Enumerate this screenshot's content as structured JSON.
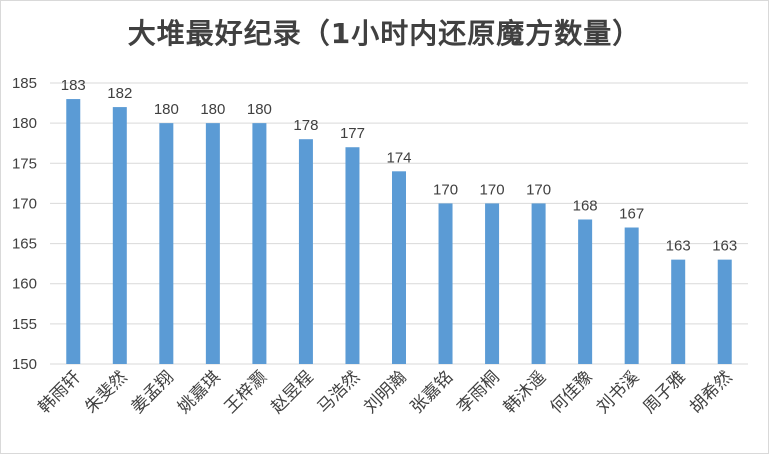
{
  "chart_data": {
    "type": "bar",
    "title": "大堆最好纪录（1小时内还原魔方数量）",
    "xlabel": "",
    "ylabel": "",
    "ylim": [
      150,
      185
    ],
    "yticks": [
      150,
      155,
      160,
      165,
      170,
      175,
      180,
      185
    ],
    "grid": true,
    "legend": "none",
    "bar_color": "#5b9bd5",
    "categories": [
      "韩雨轩",
      "朱斐然",
      "姜孟翔",
      "姚嘉琪",
      "王梓灏",
      "赵昱程",
      "马浩然",
      "刘明瀚",
      "张嘉铭",
      "李雨桐",
      "韩沐遥",
      "何佳豫",
      "刘书溪",
      "周子雅",
      "胡希然"
    ],
    "values": [
      183,
      182,
      180,
      180,
      180,
      178,
      177,
      174,
      170,
      170,
      170,
      168,
      167,
      163,
      163
    ]
  }
}
